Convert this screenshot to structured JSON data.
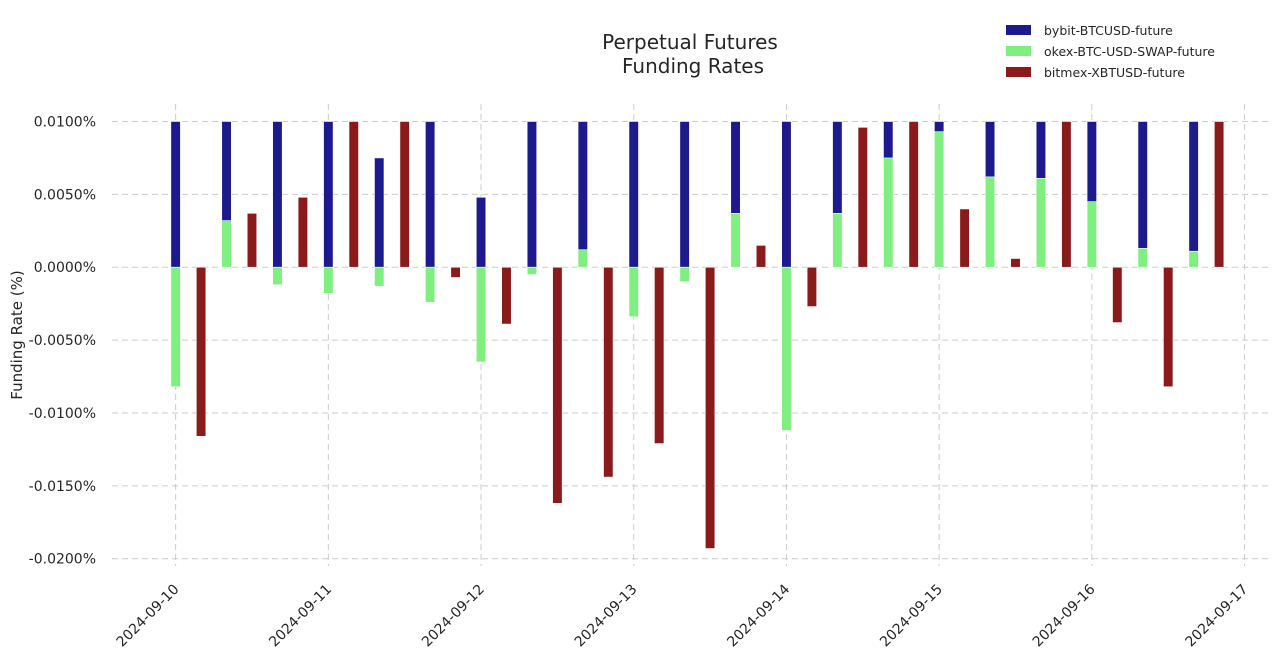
{
  "chart_data": {
    "type": "bar",
    "title_lines": [
      "Perpetual Futures",
      "Funding Rates"
    ],
    "xlabel": "",
    "ylabel": "Funding Rate (%)",
    "ylim": [
      -0.0205,
      0.0112
    ],
    "y_ticks": [
      0.01,
      0.005,
      0.0,
      -0.005,
      -0.01,
      -0.015,
      -0.02
    ],
    "y_tick_labels": [
      "0.0100%",
      "0.0050%",
      "0.0000%",
      "-0.0050%",
      "-0.0100%",
      "-0.0150%",
      "-0.0200%"
    ],
    "x_ticks": [
      "2024-09-10",
      "2024-09-11",
      "2024-09-12",
      "2024-09-13",
      "2024-09-14",
      "2024-09-15",
      "2024-09-16",
      "2024-09-17"
    ],
    "x_range": [
      "2024-09-09 14:00",
      "2024-09-17 04:00"
    ],
    "grid": true,
    "legend_position": "top-right",
    "bar_width_hours": 1.5,
    "times": [
      "2024-09-10 00:00",
      "2024-09-10 08:00",
      "2024-09-10 16:00",
      "2024-09-11 00:00",
      "2024-09-11 08:00",
      "2024-09-11 16:00",
      "2024-09-12 00:00",
      "2024-09-12 08:00",
      "2024-09-12 16:00",
      "2024-09-13 00:00",
      "2024-09-13 08:00",
      "2024-09-13 16:00",
      "2024-09-14 00:00",
      "2024-09-14 08:00",
      "2024-09-14 16:00",
      "2024-09-15 00:00",
      "2024-09-15 08:00",
      "2024-09-15 16:00",
      "2024-09-16 00:00",
      "2024-09-16 08:00",
      "2024-09-16 16:00"
    ],
    "series": [
      {
        "name": "bybit-BTCUSD-future",
        "color": "#1c1a8c",
        "offset_hours": 0,
        "values": [
          0.01,
          0.01,
          0.01,
          0.01,
          0.0075,
          0.01,
          0.0048,
          0.01,
          0.01,
          0.01,
          0.01,
          0.01,
          0.01,
          0.01,
          0.01,
          0.01,
          0.01,
          0.01,
          0.01,
          0.01,
          0.01
        ]
      },
      {
        "name": "okex-BTC-USD-SWAP-future",
        "color": "#7ff07f",
        "offset_hours": 0,
        "values": [
          -0.0082,
          0.0032,
          -0.0012,
          -0.0018,
          -0.0013,
          -0.0024,
          -0.0065,
          -0.0005,
          0.0012,
          -0.0034,
          -0.001,
          0.0037,
          -0.0112,
          0.0037,
          0.0075,
          0.0093,
          0.0062,
          0.0061,
          0.0045,
          0.0013,
          0.0011
        ]
      },
      {
        "name": "bitmex-XBTUSD-future",
        "color": "#8b1a1a",
        "offset_hours": 4,
        "values": [
          -0.0116,
          0.0037,
          0.0048,
          0.01,
          0.01,
          -0.0007,
          -0.0039,
          -0.0162,
          -0.0144,
          -0.0121,
          -0.0193,
          0.0015,
          -0.0027,
          0.0096,
          0.01,
          0.004,
          0.0006,
          0.01,
          -0.0038,
          -0.0082,
          0.01
        ]
      }
    ]
  }
}
